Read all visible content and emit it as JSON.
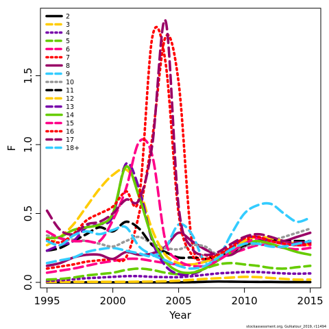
{
  "credit": "stockassessment.org, Gulkatour_2019, r11494",
  "chart_data": {
    "type": "line",
    "xlabel": "Year",
    "ylabel": "F",
    "xlim": [
      1994.5,
      2015.8
    ],
    "ylim": [
      -0.04,
      1.99
    ],
    "x_ticks": [
      "1995",
      "2000",
      "2005",
      "2010",
      "2015"
    ],
    "y_ticks": [
      "0.0",
      "0.5",
      "1.0",
      "1.5"
    ],
    "legend_position": "top-left",
    "x": [
      1995,
      1996,
      1997,
      1998,
      1999,
      2000,
      2001,
      2002,
      2003,
      2004,
      2005,
      2006,
      2007,
      2008,
      2009,
      2010,
      2011,
      2012,
      2013,
      2014,
      2015
    ],
    "series": [
      {
        "name": "2",
        "color": "#000000",
        "dash": "solid",
        "values": [
          0.0,
          0.0,
          0.0,
          0.0,
          0.0,
          0.0,
          0.0,
          0.0,
          0.0,
          0.0,
          0.0,
          0.001,
          0.004,
          0.006,
          0.005,
          0.004,
          0.003,
          0.003,
          0.002,
          0.002,
          0.002
        ]
      },
      {
        "name": "3",
        "color": "#FFCC00",
        "dash": "dashed",
        "values": [
          0.004,
          0.004,
          0.004,
          0.004,
          0.004,
          0.004,
          0.004,
          0.005,
          0.006,
          0.008,
          0.012,
          0.018,
          0.025,
          0.03,
          0.035,
          0.04,
          0.038,
          0.032,
          0.025,
          0.02,
          0.02
        ]
      },
      {
        "name": "4",
        "color": "#7700AA",
        "dash": "dotted",
        "values": [
          0.01,
          0.015,
          0.022,
          0.03,
          0.035,
          0.04,
          0.045,
          0.045,
          0.04,
          0.038,
          0.038,
          0.045,
          0.055,
          0.065,
          0.07,
          0.075,
          0.075,
          0.07,
          0.065,
          0.063,
          0.065
        ]
      },
      {
        "name": "5",
        "color": "#66CC00",
        "dash": "dashed",
        "values": [
          0.02,
          0.025,
          0.035,
          0.05,
          0.06,
          0.07,
          0.09,
          0.1,
          0.09,
          0.07,
          0.06,
          0.07,
          0.1,
          0.13,
          0.14,
          0.13,
          0.12,
          0.105,
          0.1,
          0.11,
          0.12
        ]
      },
      {
        "name": "6",
        "color": "#FF0088",
        "dash": "dashed",
        "values": [
          0.07,
          0.085,
          0.1,
          0.12,
          0.14,
          0.155,
          0.17,
          0.17,
          0.155,
          0.14,
          0.13,
          0.13,
          0.15,
          0.18,
          0.21,
          0.24,
          0.27,
          0.27,
          0.25,
          0.24,
          0.25
        ]
      },
      {
        "name": "7",
        "color": "#FF0000",
        "dash": "dotted",
        "values": [
          0.1,
          0.115,
          0.13,
          0.15,
          0.16,
          0.17,
          0.18,
          0.5,
          1.05,
          1.78,
          1.45,
          0.3,
          0.2,
          0.2,
          0.25,
          0.3,
          0.33,
          0.3,
          0.28,
          0.27,
          0.28
        ]
      },
      {
        "name": "8",
        "color": "#990066",
        "dash": "solid",
        "values": [
          0.12,
          0.14,
          0.18,
          0.2,
          0.2,
          0.17,
          0.22,
          0.2,
          0.21,
          0.26,
          0.36,
          0.3,
          0.24,
          0.2,
          0.2,
          0.26,
          0.3,
          0.3,
          0.3,
          0.33,
          0.36
        ]
      },
      {
        "name": "9",
        "color": "#33CCFF",
        "dash": "dashed",
        "values": [
          0.14,
          0.16,
          0.18,
          0.22,
          0.24,
          0.25,
          0.23,
          0.21,
          0.19,
          0.25,
          0.42,
          0.35,
          0.15,
          0.18,
          0.35,
          0.5,
          0.56,
          0.57,
          0.5,
          0.44,
          0.47
        ]
      },
      {
        "name": "10",
        "color": "#999999",
        "dash": "dotted",
        "values": [
          0.34,
          0.32,
          0.31,
          0.3,
          0.28,
          0.26,
          0.3,
          0.33,
          0.28,
          0.25,
          0.24,
          0.27,
          0.26,
          0.2,
          0.22,
          0.26,
          0.28,
          0.3,
          0.33,
          0.36,
          0.39
        ]
      },
      {
        "name": "11",
        "color": "#000000",
        "dash": "dashed",
        "values": [
          0.23,
          0.25,
          0.3,
          0.35,
          0.4,
          0.37,
          0.44,
          0.39,
          0.27,
          0.22,
          0.18,
          0.18,
          0.17,
          0.19,
          0.22,
          0.27,
          0.3,
          0.31,
          0.3,
          0.3,
          0.3
        ]
      },
      {
        "name": "12",
        "color": "#FFCC00",
        "dash": "dashed",
        "values": [
          0.27,
          0.33,
          0.42,
          0.55,
          0.68,
          0.78,
          0.82,
          0.68,
          0.38,
          0.2,
          0.14,
          0.13,
          0.15,
          0.19,
          0.24,
          0.3,
          0.33,
          0.32,
          0.3,
          0.28,
          0.27
        ]
      },
      {
        "name": "13",
        "color": "#7700AA",
        "dash": "dashed",
        "values": [
          0.23,
          0.27,
          0.3,
          0.4,
          0.42,
          0.48,
          0.86,
          0.68,
          0.3,
          0.12,
          0.06,
          0.06,
          0.1,
          0.17,
          0.25,
          0.32,
          0.33,
          0.3,
          0.28,
          0.28,
          0.3
        ]
      },
      {
        "name": "14",
        "color": "#66CC00",
        "dash": "solid",
        "values": [
          0.32,
          0.33,
          0.38,
          0.4,
          0.42,
          0.5,
          0.84,
          0.62,
          0.32,
          0.15,
          0.08,
          0.07,
          0.1,
          0.16,
          0.22,
          0.28,
          0.3,
          0.28,
          0.25,
          0.22,
          0.2
        ]
      },
      {
        "name": "15",
        "color": "#FF0088",
        "dash": "dashed",
        "values": [
          0.37,
          0.32,
          0.3,
          0.3,
          0.3,
          0.45,
          0.68,
          1.02,
          0.92,
          0.3,
          0.16,
          0.12,
          0.12,
          0.16,
          0.22,
          0.28,
          0.32,
          0.3,
          0.28,
          0.27,
          0.27
        ]
      },
      {
        "name": "16",
        "color": "#FF0000",
        "dash": "dotted",
        "values": [
          0.31,
          0.29,
          0.35,
          0.45,
          0.5,
          0.55,
          0.66,
          0.62,
          1.78,
          1.6,
          0.5,
          0.2,
          0.17,
          0.2,
          0.26,
          0.32,
          0.33,
          0.3,
          0.28,
          0.27,
          0.28
        ]
      },
      {
        "name": "17",
        "color": "#990066",
        "dash": "dashed",
        "values": [
          0.52,
          0.38,
          0.35,
          0.42,
          0.44,
          0.5,
          0.6,
          0.6,
          1.0,
          1.9,
          0.55,
          0.25,
          0.2,
          0.22,
          0.28,
          0.33,
          0.35,
          0.33,
          0.3,
          0.29,
          0.29
        ]
      },
      {
        "name": "18+",
        "color": "#33CCFF",
        "dash": "dashed",
        "values": [
          0.3,
          0.27,
          0.34,
          0.37,
          0.35,
          0.38,
          0.4,
          0.26,
          0.2,
          0.16,
          0.12,
          0.1,
          0.12,
          0.18,
          0.24,
          0.28,
          0.28,
          0.26,
          0.26,
          0.28,
          0.3
        ]
      }
    ]
  }
}
